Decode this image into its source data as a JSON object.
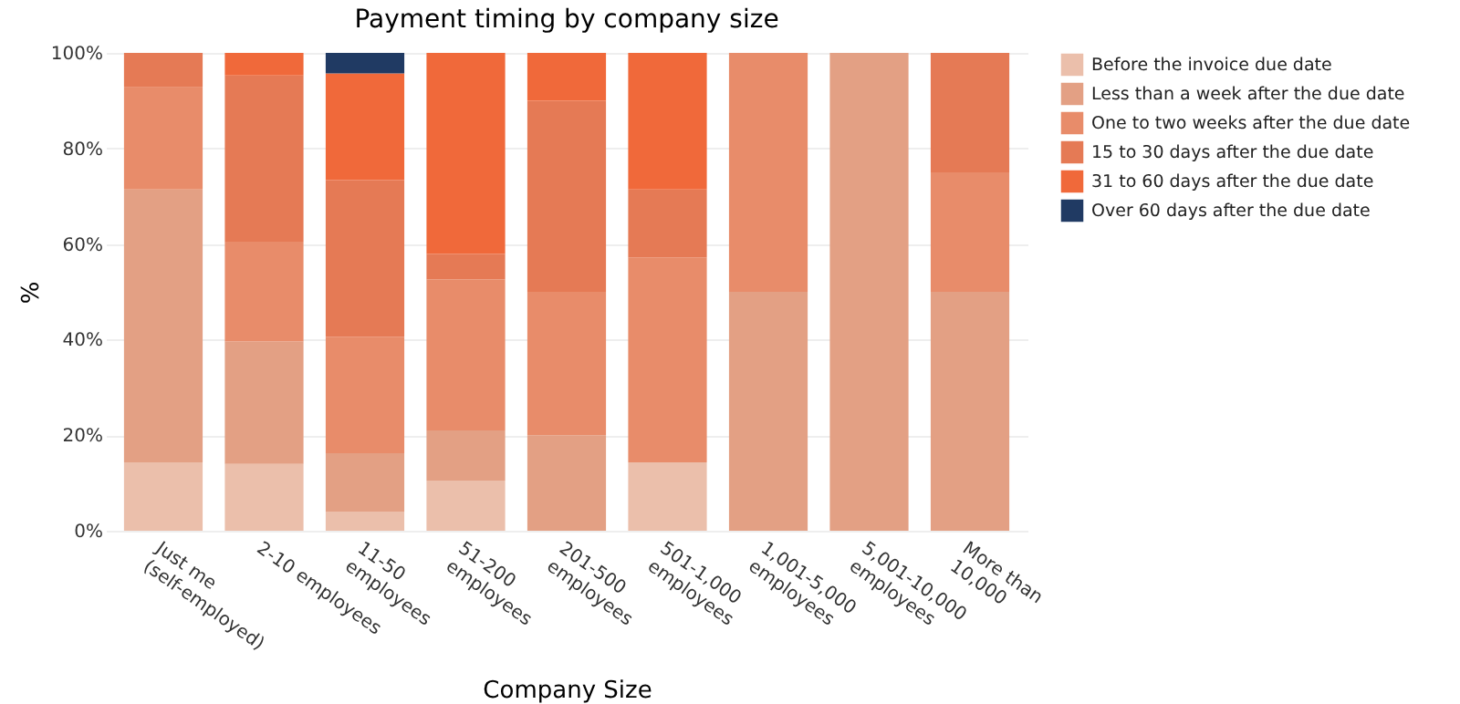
{
  "chart_data": {
    "type": "bar",
    "stacked": true,
    "title": "Payment timing by company size",
    "xlabel": "Company Size",
    "ylabel": "%",
    "categories": [
      "Just me (self-employed)",
      "2-10 employees",
      "11-50 employees",
      "51-200 employees",
      "201-500 employees",
      "501-1,000 employees",
      "1,001-5,000 employees",
      "5,001-10,000 employees",
      "More than 10,000"
    ],
    "series": [
      {
        "name": "Before the invoice due date",
        "color": "#ebbfab",
        "values": [
          14.3,
          14,
          3.9,
          10.5,
          0,
          14.3,
          0,
          0,
          0
        ]
      },
      {
        "name": "Less than a week after the due date",
        "color": "#e3a084",
        "values": [
          57.1,
          25.6,
          12.3,
          10.5,
          20,
          0,
          50,
          100,
          50
        ]
      },
      {
        "name": "One to two weeks after the due date",
        "color": "#e88c6a",
        "values": [
          21.4,
          20.9,
          24.4,
          31.6,
          30,
          42.9,
          50,
          0,
          25
        ]
      },
      {
        "name": "15 to 30 days after the due date",
        "color": "#e57a55",
        "values": [
          7.2,
          34.8,
          32.8,
          5.3,
          40,
          14.2,
          0,
          0,
          25
        ]
      },
      {
        "name": "31 to 60 days after the due date",
        "color": "#f0693a",
        "values": [
          0,
          4.7,
          22.3,
          42.1,
          10,
          28.6,
          0,
          0,
          0
        ]
      },
      {
        "name": "Over 60 days after the due date",
        "color": "#203a63",
        "values": [
          0,
          0,
          4.3,
          0,
          0,
          0,
          0,
          0,
          0
        ]
      }
    ],
    "ylim": [
      0,
      100
    ],
    "yticks": [
      {
        "value": 0,
        "label": "0%"
      },
      {
        "value": 20,
        "label": "20%"
      },
      {
        "value": 40,
        "label": "40%"
      },
      {
        "value": 60,
        "label": "60%"
      },
      {
        "value": 80,
        "label": "80%"
      },
      {
        "value": 100,
        "label": "100%"
      }
    ],
    "grid": "y",
    "legend": "right"
  }
}
